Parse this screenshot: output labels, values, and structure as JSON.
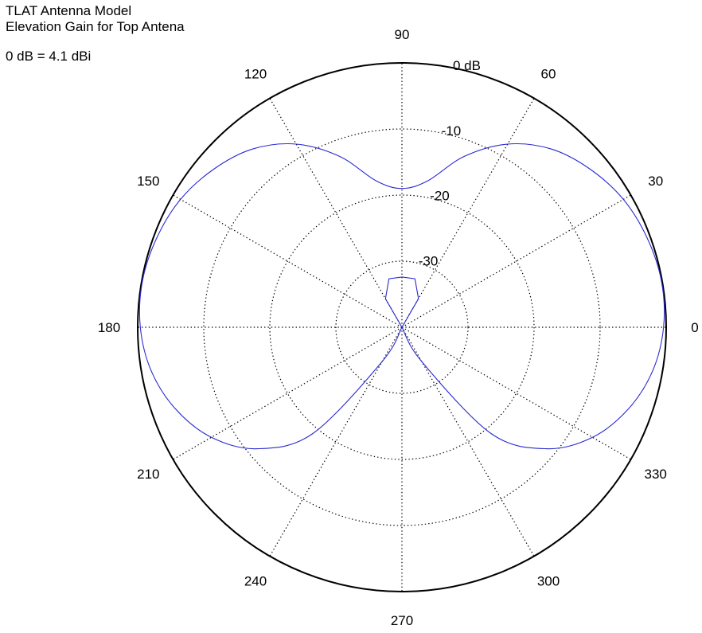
{
  "header": {
    "title": "TLAT Antenna Model",
    "subtitle": "Elevation Gain for Top Antena",
    "reference_note": "0 dB = 4.1 dBi"
  },
  "chart_data": {
    "type": "polar-line",
    "title": "TLAT Antenna Model",
    "subtitle": "Elevation Gain for Top Antena",
    "annotation": "0 dB = 4.1 dBi",
    "radial_axis": {
      "unit": "dB",
      "range": [
        -40,
        0
      ],
      "ring_values": [
        -30,
        -20,
        -10,
        0
      ],
      "ring_labels": [
        "-30",
        "-20",
        "-10",
        "0 dB"
      ]
    },
    "angular_axis": {
      "unit": "degrees",
      "direction": "counterclockwise",
      "zero_at": "right",
      "tick_values": [
        0,
        30,
        60,
        90,
        120,
        150,
        180,
        210,
        240,
        270,
        300,
        330
      ],
      "tick_labels": [
        "0",
        "30",
        "60",
        "90",
        "120",
        "150",
        "180",
        "210",
        "240",
        "270",
        "300",
        "330"
      ]
    },
    "grid": true,
    "series": [
      {
        "color": "#2a2ad0",
        "angles": [
          -65,
          -60,
          -50,
          -40,
          -30,
          -20,
          -10,
          0,
          10,
          20,
          30,
          40,
          50,
          60,
          70,
          80,
          90,
          100,
          110,
          120,
          130,
          140,
          150,
          160,
          170,
          180,
          190,
          200,
          210,
          220,
          230,
          240,
          245
        ],
        "gain_db": [
          -40,
          -34,
          -19,
          -11.4,
          -6.7,
          -3.6,
          -1.5,
          -0.4,
          -0.1,
          -0.5,
          -1.3,
          -2.8,
          -4.8,
          -8.0,
          -12.5,
          -17.5,
          -19.0,
          -17.5,
          -12.5,
          -8.0,
          -4.8,
          -2.8,
          -1.3,
          -0.5,
          -0.1,
          -0.4,
          -1.5,
          -3.6,
          -6.7,
          -11.4,
          -19,
          -34,
          -40
        ]
      },
      {
        "color": "#2a2ad0",
        "angles": [
          20,
          60,
          75,
          90,
          105,
          120,
          160
        ],
        "gain_db": [
          -40,
          -35,
          -32.4,
          -32.4,
          -32.4,
          -35,
          -40
        ]
      }
    ]
  }
}
